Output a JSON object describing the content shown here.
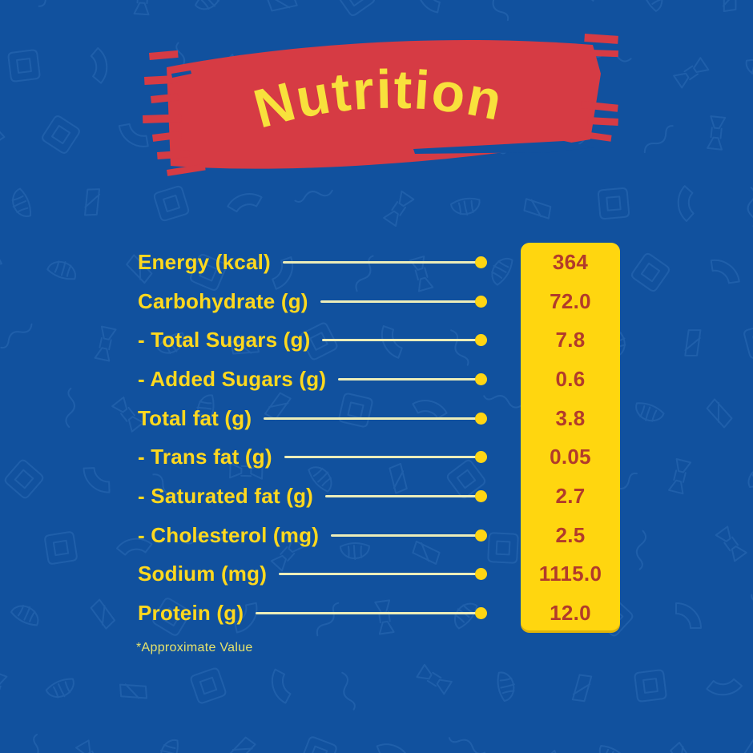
{
  "page": {
    "title": "Nutrition",
    "footnote": "*Approximate Value"
  },
  "nutrition_table": {
    "rows": [
      {
        "label": "Energy (kcal)",
        "value": "364"
      },
      {
        "label": "Carbohydrate (g)",
        "value": "72.0"
      },
      {
        "label": "- Total Sugars (g)",
        "value": "7.8"
      },
      {
        "label": "- Added Sugars (g)",
        "value": "0.6"
      },
      {
        "label": "Total fat (g)",
        "value": "3.8"
      },
      {
        "label": "- Trans fat (g)",
        "value": "0.05"
      },
      {
        "label": "- Saturated fat (g)",
        "value": "2.7"
      },
      {
        "label": "- Cholesterol (mg)",
        "value": "2.5"
      },
      {
        "label": "Sodium (mg)",
        "value": "1115.0"
      },
      {
        "label": "Protein (g)",
        "value": "12.0"
      }
    ]
  },
  "colors": {
    "background_blue": "#11519E",
    "pattern_blue": "#3673BD",
    "banner_red": "#D63B44",
    "title_yellow": "#F8E13C",
    "label_yellow": "#FFD81E",
    "leader_line": "#ECEDB9",
    "leader_dot": "#FFD513",
    "panel_yellow": "#FFD60F",
    "value_red": "#B23B2B",
    "footnote_yellow": "#E5E26C"
  }
}
